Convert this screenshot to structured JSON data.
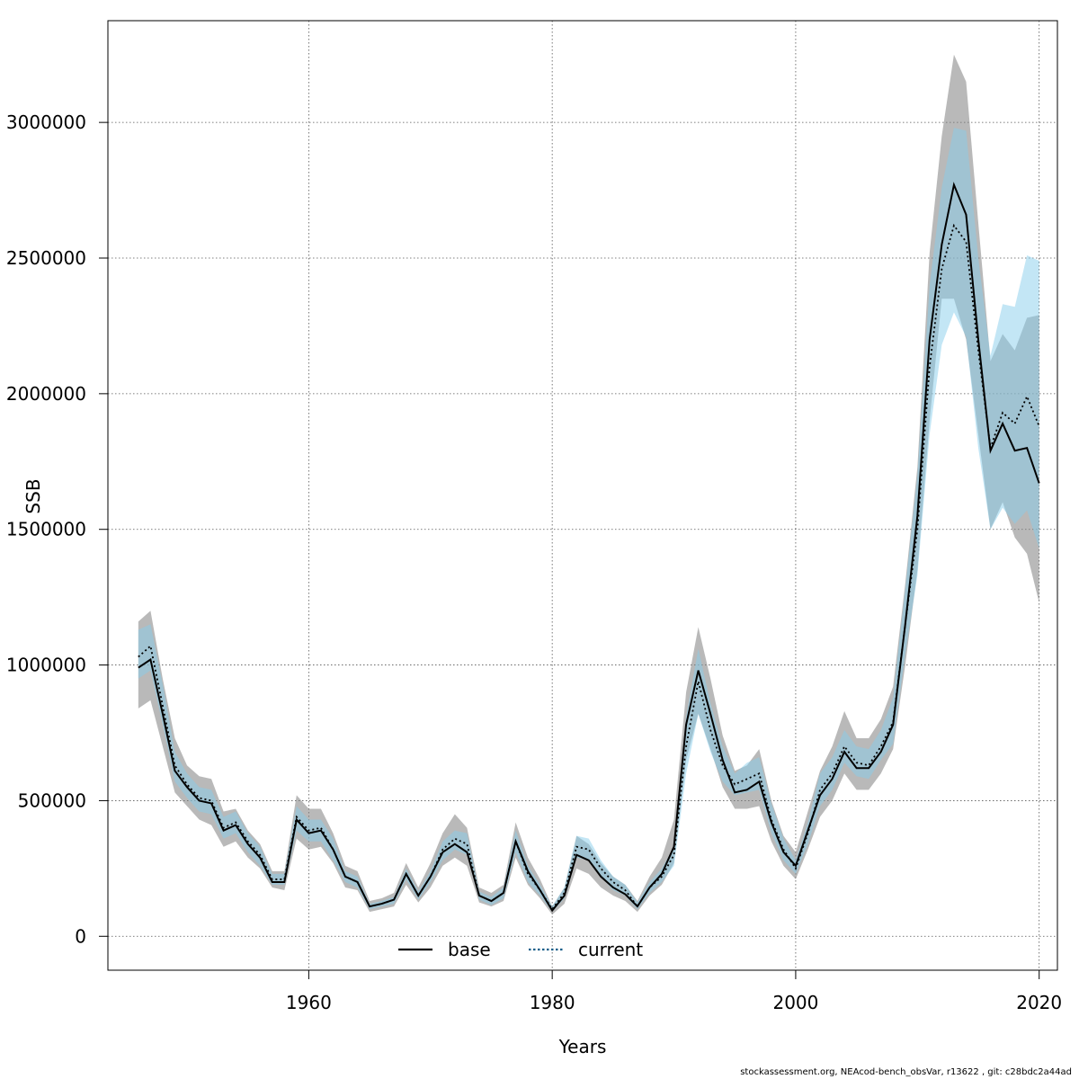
{
  "chart_data": {
    "type": "line",
    "xlabel": "Years",
    "ylabel": "SSB",
    "xlim": [
      1943.5,
      2021.5
    ],
    "ylim": [
      -125000,
      3375000
    ],
    "xticks": [
      1960,
      1980,
      2000,
      2020
    ],
    "yticks": [
      0,
      500000,
      1000000,
      1500000,
      2000000,
      2500000,
      3000000
    ],
    "xtick_labels": [
      "1960",
      "1980",
      "2000",
      "2020"
    ],
    "ytick_labels": [
      "0",
      "500000",
      "1000000",
      "1500000",
      "2000000",
      "2500000",
      "3000000"
    ],
    "grid": true,
    "legend": {
      "placement": "bottom-center"
    },
    "x": [
      1946,
      1947,
      1948,
      1949,
      1950,
      1951,
      1952,
      1953,
      1954,
      1955,
      1956,
      1957,
      1958,
      1959,
      1960,
      1961,
      1962,
      1963,
      1964,
      1965,
      1966,
      1967,
      1968,
      1969,
      1970,
      1971,
      1972,
      1973,
      1974,
      1975,
      1976,
      1977,
      1978,
      1979,
      1980,
      1981,
      1982,
      1983,
      1984,
      1985,
      1986,
      1987,
      1988,
      1989,
      1990,
      1991,
      1992,
      1993,
      1994,
      1995,
      1996,
      1997,
      1998,
      1999,
      2000,
      2001,
      2002,
      2003,
      2004,
      2005,
      2006,
      2007,
      2008,
      2009,
      2010,
      2011,
      2012,
      2013,
      2014,
      2015,
      2016,
      2017,
      2018,
      2019,
      2020
    ],
    "series": [
      {
        "name": "base",
        "style": "solid",
        "line_color": "#000000",
        "band_color": "#808080",
        "values": [
          990000,
          1020000,
          820000,
          610000,
          550000,
          500000,
          490000,
          390000,
          410000,
          340000,
          290000,
          200000,
          200000,
          430000,
          380000,
          390000,
          320000,
          220000,
          200000,
          110000,
          120000,
          135000,
          230000,
          150000,
          220000,
          310000,
          340000,
          310000,
          150000,
          130000,
          160000,
          350000,
          240000,
          170000,
          95000,
          150000,
          300000,
          280000,
          220000,
          180000,
          155000,
          110000,
          180000,
          230000,
          330000,
          780000,
          980000,
          820000,
          650000,
          530000,
          540000,
          570000,
          420000,
          310000,
          260000,
          390000,
          520000,
          580000,
          680000,
          620000,
          620000,
          680000,
          780000,
          1150000,
          1550000,
          2200000,
          2550000,
          2770000,
          2660000,
          2200000,
          1790000,
          1890000,
          1790000,
          1800000,
          1670000
        ],
        "lower": [
          840000,
          870000,
          700000,
          530000,
          480000,
          430000,
          410000,
          330000,
          350000,
          290000,
          250000,
          180000,
          170000,
          360000,
          320000,
          330000,
          270000,
          180000,
          170000,
          90000,
          100000,
          110000,
          190000,
          125000,
          180000,
          260000,
          290000,
          260000,
          125000,
          110000,
          130000,
          290000,
          190000,
          140000,
          80000,
          120000,
          250000,
          230000,
          180000,
          150000,
          130000,
          90000,
          150000,
          190000,
          270000,
          650000,
          820000,
          690000,
          550000,
          470000,
          470000,
          480000,
          350000,
          260000,
          210000,
          320000,
          440000,
          500000,
          600000,
          540000,
          540000,
          600000,
          690000,
          1000000,
          1350000,
          1900000,
          2350000,
          2350000,
          2200000,
          1850000,
          1500000,
          1600000,
          1470000,
          1410000,
          1230000
        ],
        "upper": [
          1160000,
          1200000,
          950000,
          730000,
          630000,
          590000,
          580000,
          460000,
          470000,
          390000,
          340000,
          240000,
          240000,
          520000,
          470000,
          470000,
          380000,
          260000,
          240000,
          130000,
          140000,
          160000,
          270000,
          180000,
          270000,
          380000,
          450000,
          400000,
          180000,
          160000,
          190000,
          420000,
          290000,
          210000,
          110000,
          180000,
          370000,
          340000,
          270000,
          220000,
          190000,
          130000,
          220000,
          290000,
          430000,
          900000,
          1140000,
          950000,
          740000,
          610000,
          630000,
          690000,
          500000,
          370000,
          310000,
          460000,
          610000,
          700000,
          830000,
          730000,
          730000,
          800000,
          920000,
          1300000,
          1730000,
          2520000,
          2950000,
          3250000,
          3150000,
          2630000,
          2120000,
          2220000,
          2160000,
          2280000,
          2290000
        ]
      },
      {
        "name": "current",
        "style": "dotted",
        "line_color": "#000000",
        "legend_color": "#1a5f8a",
        "band_color": "#87ceeb",
        "values": [
          1030000,
          1070000,
          850000,
          630000,
          560000,
          510000,
          500000,
          400000,
          420000,
          350000,
          300000,
          210000,
          210000,
          440000,
          390000,
          400000,
          320000,
          220000,
          200000,
          110000,
          120000,
          135000,
          230000,
          150000,
          220000,
          320000,
          360000,
          340000,
          150000,
          130000,
          160000,
          350000,
          230000,
          170000,
          100000,
          160000,
          330000,
          320000,
          250000,
          200000,
          170000,
          110000,
          180000,
          220000,
          300000,
          700000,
          940000,
          760000,
          630000,
          560000,
          580000,
          600000,
          430000,
          320000,
          250000,
          380000,
          540000,
          600000,
          700000,
          640000,
          630000,
          700000,
          790000,
          1150000,
          1500000,
          2100000,
          2460000,
          2620000,
          2560000,
          2160000,
          1800000,
          1930000,
          1890000,
          1990000,
          1880000
        ],
        "lower": [
          950000,
          980000,
          780000,
          570000,
          510000,
          460000,
          450000,
          360000,
          380000,
          310000,
          260000,
          190000,
          190000,
          390000,
          350000,
          350000,
          280000,
          200000,
          180000,
          100000,
          110000,
          120000,
          210000,
          135000,
          200000,
          280000,
          320000,
          300000,
          135000,
          115000,
          140000,
          310000,
          200000,
          150000,
          90000,
          140000,
          290000,
          280000,
          220000,
          170000,
          150000,
          100000,
          160000,
          200000,
          260000,
          600000,
          820000,
          680000,
          570000,
          520000,
          530000,
          540000,
          380000,
          280000,
          230000,
          340000,
          480000,
          540000,
          640000,
          590000,
          580000,
          650000,
          710000,
          1040000,
          1330000,
          1850000,
          2180000,
          2300000,
          2210000,
          1800000,
          1500000,
          1580000,
          1520000,
          1570000,
          1430000
        ],
        "upper": [
          1130000,
          1150000,
          930000,
          680000,
          600000,
          550000,
          540000,
          440000,
          460000,
          380000,
          330000,
          230000,
          230000,
          480000,
          430000,
          430000,
          360000,
          240000,
          220000,
          120000,
          130000,
          145000,
          250000,
          165000,
          240000,
          350000,
          390000,
          380000,
          165000,
          145000,
          180000,
          390000,
          260000,
          190000,
          110000,
          180000,
          370000,
          360000,
          280000,
          220000,
          190000,
          125000,
          200000,
          250000,
          330000,
          810000,
          1060000,
          860000,
          700000,
          600000,
          640000,
          660000,
          490000,
          360000,
          280000,
          420000,
          600000,
          660000,
          760000,
          700000,
          690000,
          760000,
          880000,
          1280000,
          1700000,
          2400000,
          2760000,
          2980000,
          2970000,
          2500000,
          2140000,
          2330000,
          2320000,
          2510000,
          2490000
        ]
      }
    ]
  },
  "footer": "stockassessment.org, NEAcod-bench_obsVar, r13622 , git: c28bdc2a44ad"
}
